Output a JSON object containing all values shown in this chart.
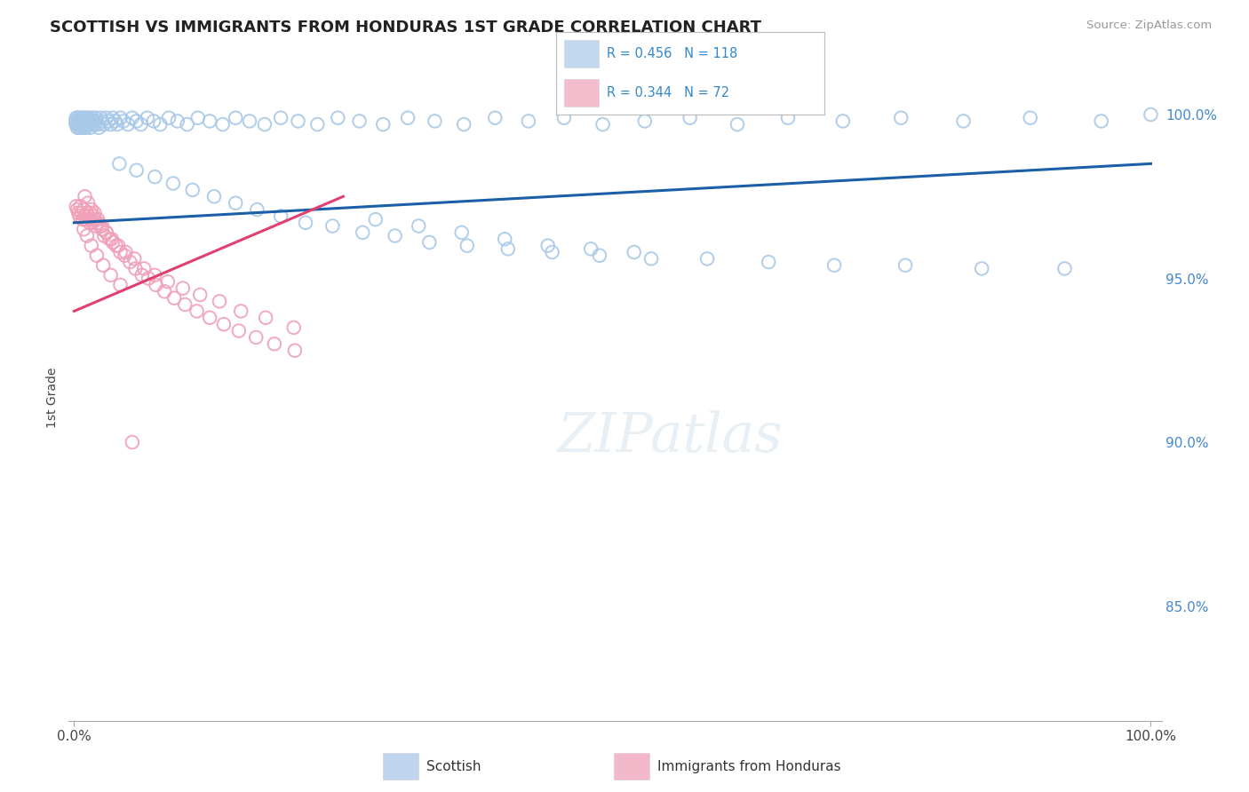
{
  "title": "SCOTTISH VS IMMIGRANTS FROM HONDURAS 1ST GRADE CORRELATION CHART",
  "source_text": "Source: ZipAtlas.com",
  "ylabel": "1st Grade",
  "right_yticks": [
    0.85,
    0.9,
    0.95,
    1.0
  ],
  "right_yticklabels": [
    "85.0%",
    "90.0%",
    "95.0%",
    "100.0%"
  ],
  "ylim": [
    0.815,
    1.012
  ],
  "xlim": [
    -0.005,
    1.01
  ],
  "watermark": "ZIPatlas",
  "scottish_color": "#a8c8e8",
  "honduras_color": "#f0a0b8",
  "trend_blue": "#1a5fa8",
  "trend_pink": "#e04070",
  "background_color": "#ffffff",
  "grid_color": "#d0d8e0",
  "scottish_x": [
    0.001,
    0.002,
    0.002,
    0.003,
    0.003,
    0.004,
    0.004,
    0.005,
    0.005,
    0.006,
    0.006,
    0.007,
    0.007,
    0.008,
    0.008,
    0.009,
    0.009,
    0.01,
    0.01,
    0.011,
    0.011,
    0.012,
    0.012,
    0.013,
    0.013,
    0.014,
    0.015,
    0.015,
    0.016,
    0.017,
    0.018,
    0.019,
    0.02,
    0.021,
    0.022,
    0.023,
    0.025,
    0.026,
    0.028,
    0.03,
    0.032,
    0.034,
    0.036,
    0.038,
    0.04,
    0.043,
    0.046,
    0.05,
    0.054,
    0.058,
    0.062,
    0.068,
    0.074,
    0.08,
    0.088,
    0.096,
    0.105,
    0.115,
    0.126,
    0.138,
    0.15,
    0.163,
    0.177,
    0.192,
    0.208,
    0.226,
    0.245,
    0.265,
    0.287,
    0.31,
    0.335,
    0.362,
    0.391,
    0.422,
    0.455,
    0.491,
    0.53,
    0.572,
    0.616,
    0.663,
    0.714,
    0.768,
    0.826,
    0.888,
    0.954,
    1.0,
    0.042,
    0.058,
    0.075,
    0.092,
    0.11,
    0.13,
    0.15,
    0.17,
    0.192,
    0.215,
    0.24,
    0.268,
    0.298,
    0.33,
    0.365,
    0.403,
    0.444,
    0.488,
    0.536,
    0.588,
    0.645,
    0.706,
    0.772,
    0.843,
    0.92,
    0.28,
    0.32,
    0.36,
    0.4,
    0.44,
    0.48,
    0.52
  ],
  "scottish_y": [
    0.998,
    0.997,
    0.999,
    0.996,
    0.998,
    0.997,
    0.999,
    0.996,
    0.998,
    0.997,
    0.999,
    0.996,
    0.998,
    0.997,
    0.999,
    0.996,
    0.998,
    0.997,
    0.999,
    0.996,
    0.998,
    0.997,
    0.999,
    0.998,
    0.997,
    0.999,
    0.998,
    0.996,
    0.997,
    0.999,
    0.998,
    0.997,
    0.999,
    0.998,
    0.997,
    0.996,
    0.999,
    0.998,
    0.997,
    0.999,
    0.998,
    0.997,
    0.999,
    0.998,
    0.997,
    0.999,
    0.998,
    0.997,
    0.999,
    0.998,
    0.997,
    0.999,
    0.998,
    0.997,
    0.999,
    0.998,
    0.997,
    0.999,
    0.998,
    0.997,
    0.999,
    0.998,
    0.997,
    0.999,
    0.998,
    0.997,
    0.999,
    0.998,
    0.997,
    0.999,
    0.998,
    0.997,
    0.999,
    0.998,
    0.999,
    0.997,
    0.998,
    0.999,
    0.997,
    0.999,
    0.998,
    0.999,
    0.998,
    0.999,
    0.998,
    1.0,
    0.985,
    0.983,
    0.981,
    0.979,
    0.977,
    0.975,
    0.973,
    0.971,
    0.969,
    0.967,
    0.966,
    0.964,
    0.963,
    0.961,
    0.96,
    0.959,
    0.958,
    0.957,
    0.956,
    0.956,
    0.955,
    0.954,
    0.954,
    0.953,
    0.953,
    0.968,
    0.966,
    0.964,
    0.962,
    0.96,
    0.959,
    0.958
  ],
  "honduras_x": [
    0.002,
    0.003,
    0.004,
    0.005,
    0.006,
    0.007,
    0.008,
    0.009,
    0.01,
    0.011,
    0.012,
    0.013,
    0.014,
    0.015,
    0.016,
    0.017,
    0.018,
    0.019,
    0.02,
    0.022,
    0.024,
    0.026,
    0.028,
    0.03,
    0.033,
    0.036,
    0.039,
    0.043,
    0.047,
    0.052,
    0.057,
    0.063,
    0.069,
    0.076,
    0.084,
    0.093,
    0.103,
    0.114,
    0.126,
    0.139,
    0.153,
    0.169,
    0.186,
    0.205,
    0.01,
    0.013,
    0.016,
    0.019,
    0.022,
    0.026,
    0.03,
    0.035,
    0.041,
    0.048,
    0.056,
    0.065,
    0.075,
    0.087,
    0.101,
    0.117,
    0.135,
    0.155,
    0.178,
    0.204,
    0.009,
    0.012,
    0.016,
    0.021,
    0.027,
    0.034,
    0.043,
    0.054
  ],
  "honduras_y": [
    0.972,
    0.971,
    0.97,
    0.969,
    0.972,
    0.97,
    0.968,
    0.971,
    0.969,
    0.968,
    0.97,
    0.969,
    0.967,
    0.97,
    0.968,
    0.967,
    0.969,
    0.968,
    0.966,
    0.967,
    0.966,
    0.965,
    0.963,
    0.964,
    0.962,
    0.961,
    0.96,
    0.958,
    0.957,
    0.955,
    0.953,
    0.951,
    0.95,
    0.948,
    0.946,
    0.944,
    0.942,
    0.94,
    0.938,
    0.936,
    0.934,
    0.932,
    0.93,
    0.928,
    0.975,
    0.973,
    0.971,
    0.97,
    0.968,
    0.966,
    0.964,
    0.962,
    0.96,
    0.958,
    0.956,
    0.953,
    0.951,
    0.949,
    0.947,
    0.945,
    0.943,
    0.94,
    0.938,
    0.935,
    0.965,
    0.963,
    0.96,
    0.957,
    0.954,
    0.951,
    0.948,
    0.9
  ],
  "blue_trend_x0": 0.0,
  "blue_trend_x1": 1.0,
  "blue_trend_y0": 0.967,
  "blue_trend_y1": 0.985,
  "pink_trend_x0": 0.0,
  "pink_trend_x1": 0.25,
  "pink_trend_y0": 0.94,
  "pink_trend_y1": 0.975,
  "legend_r_blue": "R = 0.456",
  "legend_n_blue": "N = 118",
  "legend_r_pink": "R = 0.344",
  "legend_n_pink": "N = 72"
}
